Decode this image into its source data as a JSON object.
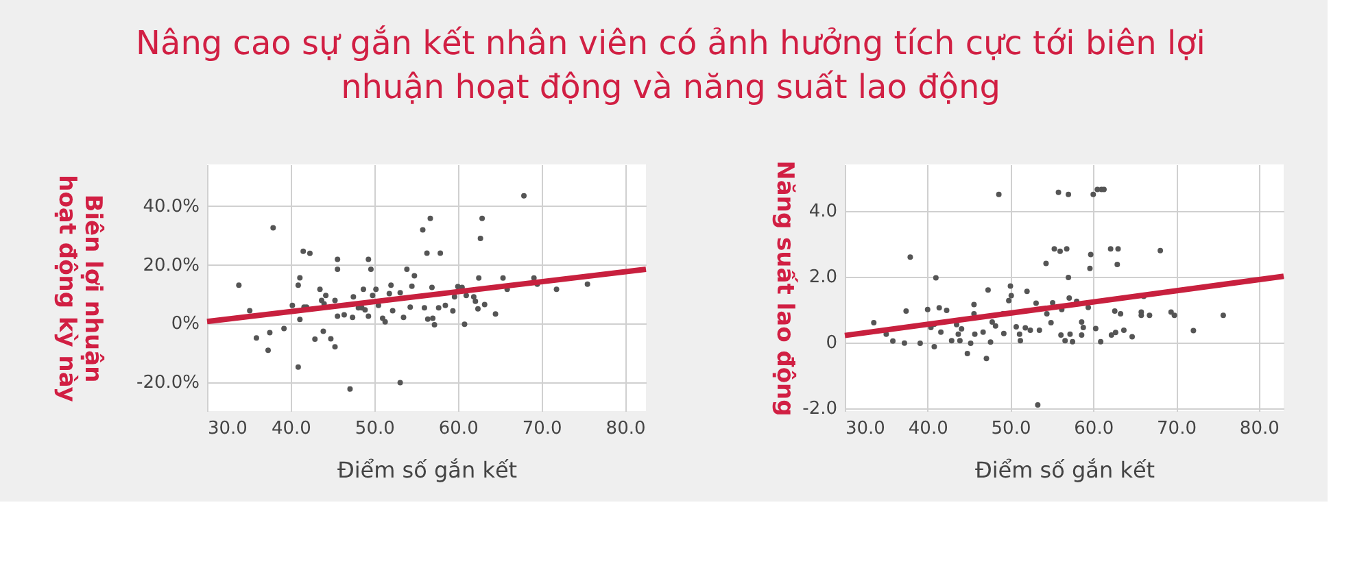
{
  "chart_data": [
    {
      "type": "scatter",
      "title": "Nâng cao sự gắn kết nhân viên có ảnh hưởng tích cực tới biên lợi nhuận hoạt động và năng suất lao động",
      "xlabel": "Điểm số gắn kết",
      "ylabel": "Biên lợi nhuận hoạt động kỳ này",
      "xlim": [
        30,
        82.5
      ],
      "ylim": [
        -30,
        54
      ],
      "xticks": [
        {
          "value": 30,
          "label": "30.0"
        },
        {
          "value": 40,
          "label": "40.0"
        },
        {
          "value": 50,
          "label": "50.0"
        },
        {
          "value": 60,
          "label": "60.0"
        },
        {
          "value": 70,
          "label": "70.0"
        },
        {
          "value": 80,
          "label": "80.0"
        }
      ],
      "yticks": [
        {
          "value": -20,
          "label": "-20.0%"
        },
        {
          "value": 0,
          "label": "0%"
        },
        {
          "value": 20,
          "label": "20.0%"
        },
        {
          "value": 40,
          "label": "40.0%"
        }
      ],
      "grid": true,
      "marker": "circle",
      "series": [
        {
          "color": "#555555",
          "x": [
            33.8,
            35.1,
            35.9,
            37.3,
            37.5,
            37.9,
            39.2,
            40.2,
            40.9,
            41.1,
            40.9,
            41.1,
            41.5,
            41.6,
            41.9,
            42.3,
            42.9,
            43.5,
            43.7,
            43.9,
            44.0,
            44.2,
            44.8,
            45.3,
            45.3,
            45.6,
            45.6,
            45.6,
            46.4,
            47.1,
            47.5,
            47.4,
            48.1,
            48.5,
            48.7,
            48.9,
            49.3,
            49.6,
            49.3,
            49.8,
            50.2,
            50.5,
            51.0,
            51.3,
            51.8,
            52.0,
            52.2,
            53.1,
            53.1,
            53.5,
            53.9,
            54.3,
            54.5,
            54.8,
            55.8,
            56.0,
            56.3,
            56.4,
            56.7,
            56.9,
            57.0,
            57.2,
            57.7,
            57.9,
            58.5,
            59.4,
            59.6,
            60.0,
            60.5,
            60.8,
            61.0,
            61.9,
            62.1,
            62.4,
            62.5,
            62.7,
            62.9,
            63.2,
            64.5,
            65.4,
            65.9,
            67.9,
            69.1,
            69.5,
            71.8,
            75.5
          ],
          "values": [
            12.9,
            4.2,
            -5.1,
            -9.3,
            -3.3,
            32.4,
            -1.9,
            6.0,
            12.9,
            15.4,
            -15.0,
            1.2,
            24.4,
            5.4,
            5.4,
            23.7,
            -5.5,
            11.5,
            7.7,
            -2.8,
            6.5,
            9.4,
            -5.4,
            -8.1,
            7.7,
            21.7,
            18.3,
            2.3,
            2.8,
            -22.5,
            8.9,
            1.9,
            5.2,
            5.2,
            11.5,
            4.5,
            21.7,
            18.3,
            2.3,
            9.4,
            11.5,
            6.0,
            1.6,
            0.4,
            10.0,
            12.9,
            4.2,
            10.3,
            -20.3,
            1.9,
            18.3,
            5.4,
            12.5,
            16.1,
            31.7,
            5.2,
            23.8,
            1.3,
            35.6,
            12.1,
            1.6,
            -0.6,
            5.2,
            23.8,
            6.0,
            4.1,
            8.9,
            12.4,
            12.1,
            -0.4,
            9.4,
            8.9,
            7.4,
            4.8,
            15.3,
            28.8,
            35.6,
            6.3,
            3.1,
            15.3,
            11.5,
            43.3,
            15.3,
            13.2,
            11.5,
            13.2
          ]
        },
        {
          "type": "line",
          "marker": "none",
          "line_style": "solid",
          "color": "#c8203e",
          "x": [
            30,
            82.5
          ],
          "values": [
            0.5,
            18.3
          ]
        }
      ]
    },
    {
      "type": "scatter",
      "xlabel": "Điểm số gắn kết",
      "ylabel": "Năng suất lao động",
      "xlim": [
        30,
        83
      ],
      "ylim": [
        -2.1,
        5.4
      ],
      "xticks": [
        {
          "value": 30,
          "label": "30.0"
        },
        {
          "value": 40,
          "label": "40.0"
        },
        {
          "value": 50,
          "label": "50.0"
        },
        {
          "value": 60,
          "label": "60.0"
        },
        {
          "value": 70,
          "label": "70.0"
        },
        {
          "value": 80,
          "label": "80.0"
        }
      ],
      "yticks": [
        {
          "value": -2,
          "label": "-2.0"
        },
        {
          "value": 0,
          "label": "0"
        },
        {
          "value": 2,
          "label": "2.0"
        },
        {
          "value": 4,
          "label": "4.0"
        }
      ],
      "grid": true,
      "marker": "circle",
      "series": [
        {
          "color": "#555555",
          "x": [
            33.5,
            35.0,
            35.8,
            37.2,
            37.4,
            37.9,
            39.1,
            40.0,
            40.4,
            40.8,
            40.8,
            41.0,
            41.4,
            41.6,
            42.3,
            42.9,
            43.5,
            43.7,
            43.9,
            44.1,
            44.8,
            45.2,
            45.6,
            45.6,
            45.7,
            46.7,
            47.1,
            47.3,
            47.6,
            47.8,
            48.2,
            48.6,
            49.1,
            49.2,
            49.8,
            50.0,
            50.1,
            50.7,
            51.1,
            51.2,
            51.8,
            52.0,
            52.4,
            53.1,
            53.3,
            53.5,
            54.3,
            54.4,
            54.9,
            55.1,
            55.3,
            55.8,
            56.0,
            56.1,
            56.2,
            56.6,
            56.8,
            57.0,
            57.0,
            57.1,
            57.2,
            57.5,
            58.0,
            58.6,
            58.6,
            58.8,
            59.4,
            59.6,
            59.7,
            60.0,
            60.3,
            60.5,
            61.0,
            60.9,
            61.3,
            62.1,
            62.2,
            62.6,
            62.7,
            62.9,
            63.0,
            63.3,
            63.7,
            64.7,
            65.8,
            65.8,
            66.1,
            66.8,
            68.1,
            69.4,
            69.8,
            72.1,
            75.7
          ],
          "values": [
            0.59,
            0.24,
            0.03,
            -0.03,
            0.94,
            2.58,
            -0.04,
            0.99,
            0.44,
            0.54,
            -0.14,
            1.95,
            1.04,
            0.3,
            0.96,
            0.04,
            0.53,
            0.24,
            0.04,
            0.4,
            -0.35,
            -0.04,
            1.14,
            0.86,
            0.24,
            0.3,
            -0.5,
            1.58,
            0.0,
            0.61,
            0.49,
            4.49,
            0.86,
            0.26,
            1.26,
            1.7,
            1.41,
            0.46,
            0.24,
            0.04,
            0.43,
            1.54,
            0.36,
            1.18,
            -1.91,
            0.36,
            2.39,
            0.86,
            0.59,
            1.19,
            2.83,
            4.55,
            2.76,
            0.21,
            0.99,
            0.04,
            2.83,
            4.49,
            1.96,
            1.34,
            0.24,
            0.01,
            1.24,
            0.21,
            0.61,
            0.44,
            1.05,
            2.24,
            2.66,
            4.49,
            0.41,
            4.64,
            4.64,
            0.01,
            4.64,
            2.83,
            0.21,
            0.94,
            0.29,
            2.36,
            2.83,
            0.86,
            0.36,
            0.16,
            0.91,
            0.81,
            1.39,
            0.81,
            2.78,
            0.91,
            0.81,
            0.35,
            0.81
          ]
        },
        {
          "type": "line",
          "marker": "none",
          "line_style": "solid",
          "color": "#c8203e",
          "x": [
            30,
            83
          ],
          "values": [
            0.2,
            2.0
          ]
        }
      ]
    }
  ]
}
